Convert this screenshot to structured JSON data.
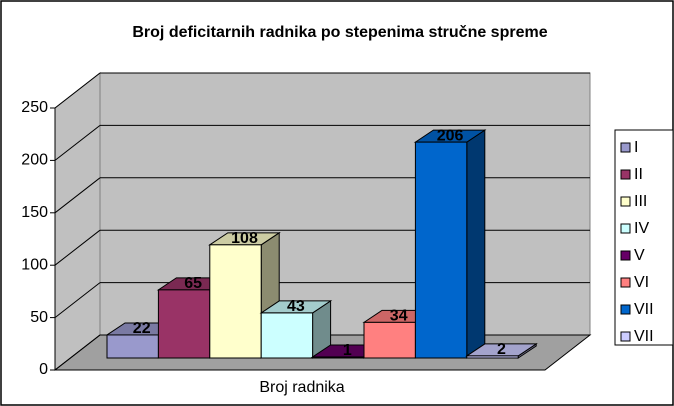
{
  "chart_data": {
    "type": "bar3d",
    "title": "Broj deficitarnih radnika po stepenima stručne spreme",
    "categories": [
      "Broj radnika"
    ],
    "series": [
      {
        "name": "I",
        "color": "#9999cc",
        "values": [
          22
        ]
      },
      {
        "name": "II",
        "color": "#993366",
        "values": [
          65
        ]
      },
      {
        "name": "III",
        "color": "#ffffcc",
        "values": [
          108
        ]
      },
      {
        "name": "IV",
        "color": "#ccffff",
        "values": [
          43
        ]
      },
      {
        "name": "V",
        "color": "#660066",
        "values": [
          1
        ]
      },
      {
        "name": "VI",
        "color": "#ff8080",
        "values": [
          34
        ]
      },
      {
        "name": "VII",
        "color": "#0066cc",
        "values": [
          206
        ]
      },
      {
        "name": "VII",
        "color": "#ccccff",
        "values": [
          2
        ]
      }
    ],
    "ylim": [
      0,
      250
    ],
    "yticks": [
      0,
      50,
      100,
      150,
      200,
      250
    ],
    "grid": true,
    "legend": "right"
  }
}
